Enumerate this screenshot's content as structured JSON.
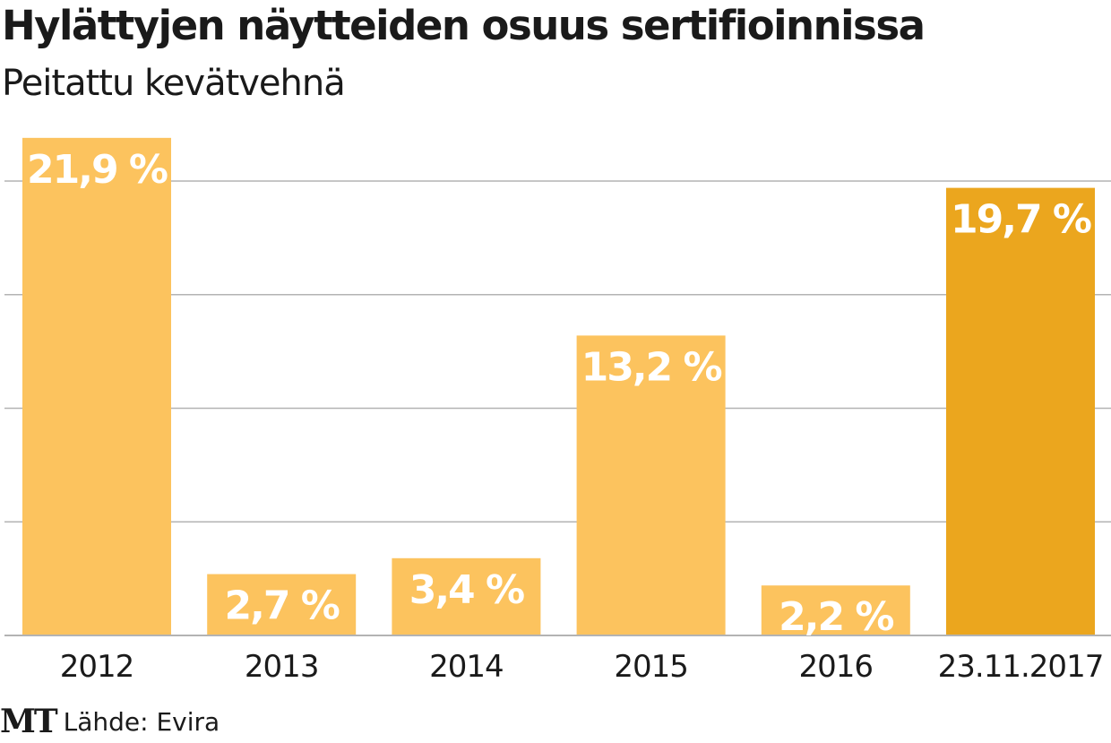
{
  "chart_data": {
    "type": "bar",
    "title": "Hylättyjen näytteiden osuus sertifioinnissa",
    "subtitle": "Peitattu kevätvehnä",
    "categories": [
      "2012",
      "2013",
      "2014",
      "2015",
      "2016",
      "23.11.2017"
    ],
    "values": [
      21.9,
      2.7,
      3.4,
      13.2,
      2.2,
      19.7
    ],
    "value_labels": [
      "21,9 %",
      "2,7 %",
      "3,4 %",
      "13,2 %",
      "2,2 %",
      "19,7 %"
    ],
    "highlight_index": 5,
    "xlabel": "",
    "ylabel": "",
    "ylim": [
      0,
      20
    ],
    "gridlines": [
      5,
      10,
      15,
      20
    ],
    "grid": true,
    "colors": {
      "bar": "#fcc35e",
      "highlight": "#eba61e",
      "grid": "#b3b3b3",
      "label": "#ffffff"
    }
  },
  "footer": {
    "logo": "MT",
    "source": "Lähde: Evira"
  }
}
